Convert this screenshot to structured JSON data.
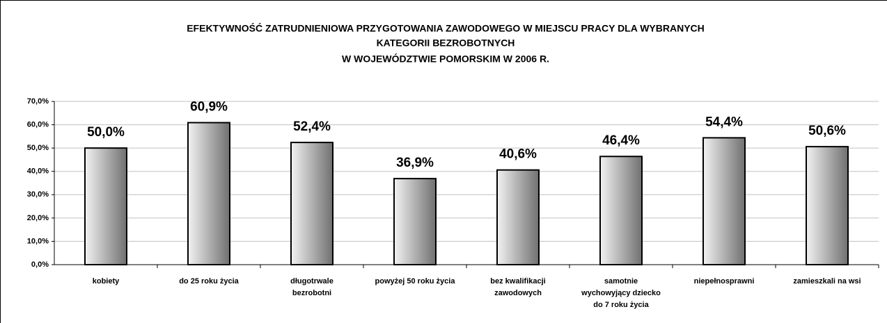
{
  "chart_data": {
    "type": "bar",
    "title": [
      "EFEKTYWNOŚĆ ZATRUDNIENIOWA PRZYGOTOWANIA ZAWODOWEGO W MIEJSCU PRACY DLA WYBRANYCH",
      "KATEGORII BEZROBOTNYCH",
      "W WOJEWÓDZTWIE POMORSKIM W 2006 R."
    ],
    "categories": [
      [
        "kobiety"
      ],
      [
        "do 25 roku życia"
      ],
      [
        "długotrwale",
        "bezrobotni"
      ],
      [
        "powyżej 50 roku życia"
      ],
      [
        "bez kwalifikacji",
        "zawodowych"
      ],
      [
        "samotnie",
        "wychowyjący dziecko",
        "do 7 roku życia"
      ],
      [
        "niepełnosprawni"
      ],
      [
        "zamieszkali na wsi"
      ]
    ],
    "values": [
      50.0,
      60.9,
      52.4,
      36.9,
      40.6,
      46.4,
      54.4,
      50.6
    ],
    "value_labels": [
      "50,0%",
      "60,9%",
      "52,4%",
      "36,9%",
      "40,6%",
      "46,4%",
      "54,4%",
      "50,6%"
    ],
    "color": [
      "#f2f2f2",
      "#707070"
    ],
    "ylim": [
      0,
      70
    ],
    "yticks": [
      {
        "value": 0,
        "label": "0,0%"
      },
      {
        "value": 10,
        "label": "10,0%"
      },
      {
        "value": 20,
        "label": "20,0%"
      },
      {
        "value": 30,
        "label": "30,0%"
      },
      {
        "value": 40,
        "label": "40,0%"
      },
      {
        "value": 50,
        "label": "50,0%"
      },
      {
        "value": 60,
        "label": "60,0%"
      },
      {
        "value": 70,
        "label": "70,0%"
      }
    ],
    "grid": true
  }
}
